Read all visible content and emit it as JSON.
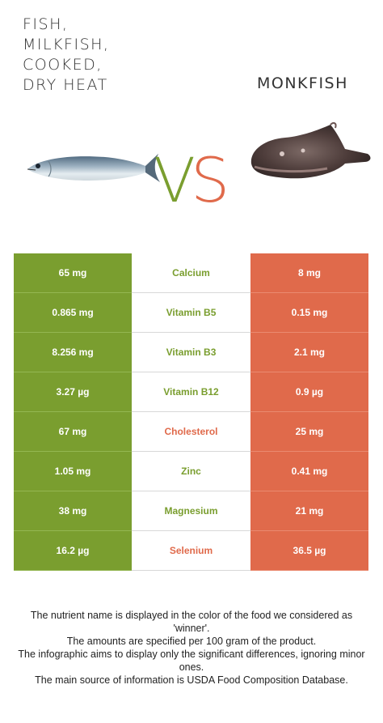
{
  "header": {
    "left_title_lines": [
      "FISH,",
      "MILKFISH,",
      "COOKED,",
      "DRY HEAT"
    ],
    "right_title": "MONKFISH",
    "vs_v": "V",
    "vs_s": "S"
  },
  "colors": {
    "winner_left": "#7a9e2f",
    "winner_right": "#e06a4b"
  },
  "rows": [
    {
      "left": "65 mg",
      "nutrient": "Calcium",
      "right": "8 mg",
      "winner": "left"
    },
    {
      "left": "0.865 mg",
      "nutrient": "Vitamin B5",
      "right": "0.15 mg",
      "winner": "left"
    },
    {
      "left": "8.256 mg",
      "nutrient": "Vitamin B3",
      "right": "2.1 mg",
      "winner": "left"
    },
    {
      "left": "3.27 µg",
      "nutrient": "Vitamin B12",
      "right": "0.9 µg",
      "winner": "left"
    },
    {
      "left": "67 mg",
      "nutrient": "Cholesterol",
      "right": "25 mg",
      "winner": "right"
    },
    {
      "left": "1.05 mg",
      "nutrient": "Zinc",
      "right": "0.41 mg",
      "winner": "left"
    },
    {
      "left": "38 mg",
      "nutrient": "Magnesium",
      "right": "21 mg",
      "winner": "left"
    },
    {
      "left": "16.2 µg",
      "nutrient": "Selenium",
      "right": "36.5 µg",
      "winner": "right"
    }
  ],
  "footer": {
    "line1": "The nutrient name is displayed in the color of the food we considered as 'winner'.",
    "line2": "The amounts are specified per 100 gram of the product.",
    "line3": "The infographic aims to display only the significant differences, ignoring minor ones.",
    "line4": "The main source of information is USDA Food Composition Database."
  }
}
